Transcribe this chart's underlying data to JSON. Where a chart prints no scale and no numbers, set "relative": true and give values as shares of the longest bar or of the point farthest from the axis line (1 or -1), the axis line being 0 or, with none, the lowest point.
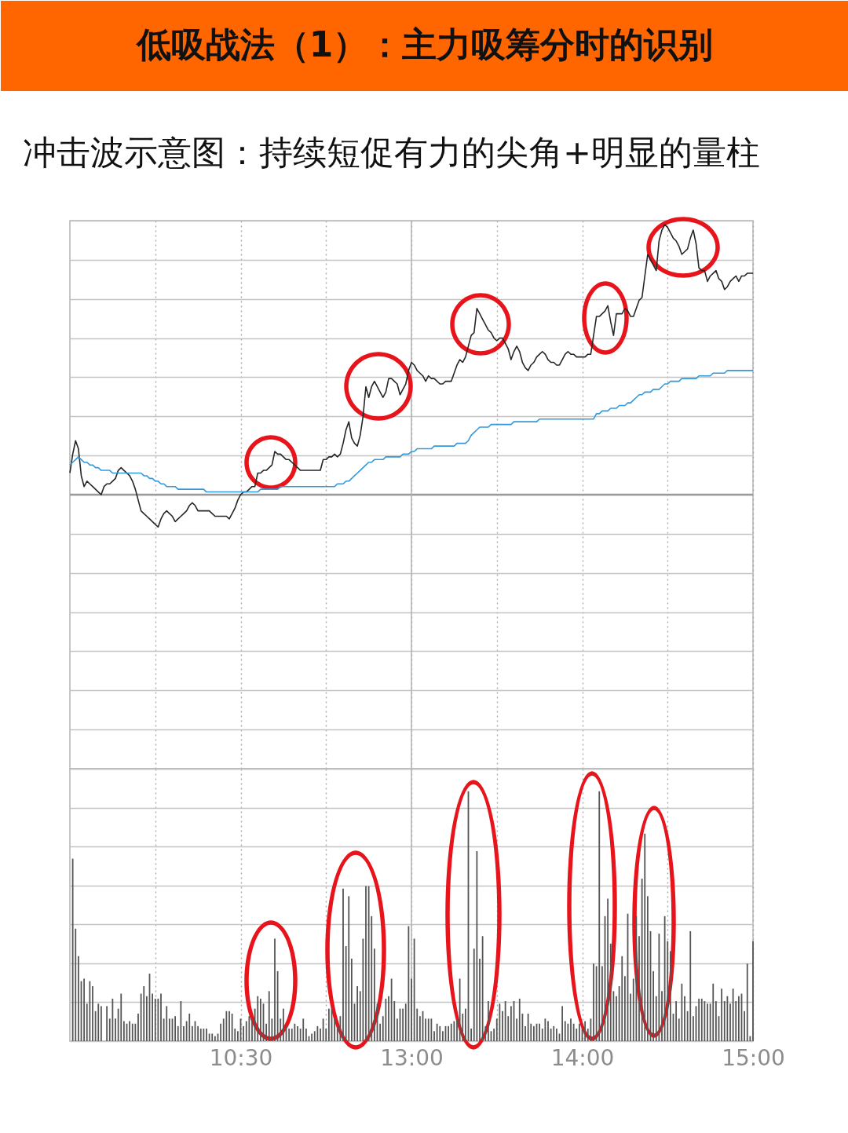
{
  "chart_data": [
    {
      "type": "line",
      "title": "低吸战法（1）：主力吸筹分时的识别",
      "subtitle": "冲击波示意图：持续短促有力的尖角+明显的量柱",
      "relative": true,
      "tick_labels": false,
      "grid": true,
      "categories": [
        null,
        null,
        null,
        null,
        null,
        null,
        null,
        null,
        null,
        null,
        null,
        null,
        null,
        null,
        null,
        null,
        null,
        null,
        null,
        null,
        null,
        null,
        null,
        null,
        null,
        null,
        null,
        null,
        null,
        null,
        null,
        null,
        null,
        null,
        null,
        null,
        null,
        null,
        null,
        null,
        null,
        null,
        null,
        null,
        null,
        null,
        null,
        null,
        null,
        null,
        null,
        null,
        null,
        null,
        null,
        null,
        null,
        null,
        null,
        null,
        "10:30",
        null,
        null,
        null,
        null,
        null,
        null,
        null,
        null,
        null,
        null,
        null,
        null,
        null,
        null,
        null,
        null,
        null,
        null,
        null,
        null,
        null,
        null,
        null,
        null,
        null,
        null,
        null,
        null,
        null,
        null,
        null,
        null,
        null,
        null,
        null,
        null,
        null,
        null,
        null,
        null,
        null,
        null,
        null,
        null,
        null,
        null,
        null,
        null,
        null,
        null,
        null,
        null,
        null,
        null,
        null,
        null,
        null,
        null,
        null,
        "13:00",
        null,
        null,
        null,
        null,
        null,
        null,
        null,
        null,
        null,
        null,
        null,
        null,
        null,
        null,
        null,
        null,
        null,
        null,
        null,
        null,
        null,
        null,
        null,
        null,
        null,
        null,
        null,
        null,
        null,
        null,
        null,
        null,
        null,
        null,
        null,
        null,
        null,
        null,
        null,
        null,
        null,
        null,
        null,
        null,
        null,
        null,
        null,
        null,
        null,
        null,
        null,
        null,
        null,
        null,
        null,
        null,
        null,
        null,
        null,
        "14:00",
        null,
        null,
        null,
        null,
        null,
        null,
        null,
        null,
        null,
        null,
        null,
        null,
        null,
        null,
        null,
        null,
        null,
        null,
        null,
        null,
        null,
        null,
        null,
        null,
        null,
        null,
        null,
        null,
        null,
        null,
        null,
        null,
        null,
        null,
        null,
        null,
        null,
        null,
        null,
        null,
        null,
        null,
        null,
        null,
        null,
        null,
        null,
        null,
        null,
        null,
        null,
        null,
        null,
        null,
        null,
        null,
        null,
        null,
        null,
        "15:00"
      ],
      "series": [
        {
          "color": "#262626",
          "values": [
            0.08,
            0.15,
            0.2,
            0.17,
            0.07,
            0.03,
            0.05,
            0.04,
            0.03,
            0.02,
            0.01,
            0.0,
            0.03,
            0.04,
            0.04,
            0.05,
            0.06,
            0.09,
            0.1,
            0.09,
            0.08,
            0.07,
            0.05,
            0.02,
            -0.02,
            -0.06,
            -0.07,
            -0.08,
            -0.09,
            -0.1,
            -0.11,
            -0.12,
            -0.09,
            -0.07,
            -0.06,
            -0.07,
            -0.08,
            -0.1,
            -0.09,
            -0.08,
            -0.07,
            -0.06,
            -0.04,
            -0.03,
            -0.04,
            -0.06,
            -0.06,
            -0.06,
            -0.06,
            -0.06,
            -0.07,
            -0.08,
            -0.08,
            -0.08,
            -0.08,
            -0.08,
            -0.09,
            -0.07,
            -0.05,
            -0.02,
            0.0,
            0.01,
            0.01,
            0.02,
            0.03,
            0.03,
            0.08,
            0.08,
            0.09,
            0.09,
            0.1,
            0.11,
            0.16,
            0.15,
            0.15,
            0.14,
            0.13,
            0.13,
            0.12,
            0.11,
            0.1,
            0.09,
            0.09,
            0.09,
            0.09,
            0.09,
            0.09,
            0.09,
            0.09,
            0.13,
            0.13,
            0.14,
            0.14,
            0.15,
            0.14,
            0.15,
            0.19,
            0.24,
            0.27,
            0.21,
            0.19,
            0.18,
            0.22,
            0.29,
            0.4,
            0.36,
            0.4,
            0.42,
            0.4,
            0.38,
            0.36,
            0.38,
            0.43,
            0.43,
            0.42,
            0.41,
            0.37,
            0.39,
            0.41,
            0.46,
            0.49,
            0.48,
            0.46,
            0.45,
            0.44,
            0.42,
            0.44,
            0.43,
            0.43,
            0.42,
            0.41,
            0.41,
            0.42,
            0.42,
            0.42,
            0.45,
            0.48,
            0.5,
            0.49,
            0.51,
            0.55,
            0.59,
            0.6,
            0.69,
            0.67,
            0.65,
            0.63,
            0.61,
            0.6,
            0.58,
            0.57,
            0.58,
            0.58,
            0.56,
            0.54,
            0.5,
            0.53,
            0.55,
            0.53,
            0.49,
            0.47,
            0.46,
            0.48,
            0.49,
            0.51,
            0.52,
            0.53,
            0.52,
            0.5,
            0.49,
            0.49,
            0.48,
            0.48,
            0.5,
            0.52,
            0.53,
            0.52,
            0.52,
            0.51,
            0.51,
            0.51,
            0.51,
            0.52,
            0.52,
            0.59,
            0.66,
            0.66,
            0.67,
            0.68,
            0.7,
            0.64,
            0.59,
            0.67,
            0.67,
            0.67,
            0.69,
            0.68,
            0.66,
            0.66,
            0.69,
            0.72,
            0.73,
            0.81,
            0.89,
            0.87,
            0.85,
            0.83,
            0.94,
            0.98,
            1.0,
            0.99,
            0.97,
            0.95,
            0.94,
            0.92,
            0.89,
            0.9,
            0.91,
            0.95,
            0.98,
            0.93,
            0.84,
            0.83,
            0.83,
            0.79,
            0.81,
            0.82,
            0.83,
            0.8,
            0.79,
            0.76,
            0.77,
            0.79,
            0.8,
            0.81,
            0.79,
            0.81,
            0.81,
            0.82,
            0.82,
            0.82
          ]
        },
        {
          "color": "#3399dd",
          "values": [
            0.11,
            0.12,
            0.13,
            0.14,
            0.13,
            0.12,
            0.12,
            0.11,
            0.11,
            0.1,
            0.1,
            0.09,
            0.09,
            0.09,
            0.09,
            0.08,
            0.08,
            0.08,
            0.08,
            0.08,
            0.08,
            0.08,
            0.08,
            0.08,
            0.08,
            0.08,
            0.07,
            0.07,
            0.06,
            0.06,
            0.05,
            0.05,
            0.04,
            0.04,
            0.03,
            0.03,
            0.03,
            0.03,
            0.02,
            0.02,
            0.02,
            0.02,
            0.02,
            0.02,
            0.02,
            0.02,
            0.02,
            0.02,
            0.01,
            0.01,
            0.01,
            0.01,
            0.01,
            0.01,
            0.01,
            0.01,
            0.01,
            0.01,
            0.01,
            0.01,
            0.01,
            0.01,
            0.01,
            0.01,
            0.01,
            0.01,
            0.01,
            0.02,
            0.02,
            0.02,
            0.02,
            0.02,
            0.02,
            0.02,
            0.03,
            0.03,
            0.03,
            0.03,
            0.03,
            0.03,
            0.03,
            0.03,
            0.03,
            0.03,
            0.03,
            0.03,
            0.03,
            0.03,
            0.03,
            0.03,
            0.03,
            0.03,
            0.03,
            0.03,
            0.04,
            0.04,
            0.04,
            0.05,
            0.05,
            0.06,
            0.07,
            0.08,
            0.09,
            0.1,
            0.11,
            0.12,
            0.12,
            0.13,
            0.13,
            0.13,
            0.13,
            0.14,
            0.14,
            0.14,
            0.14,
            0.14,
            0.14,
            0.15,
            0.15,
            0.15,
            0.16,
            0.16,
            0.17,
            0.17,
            0.17,
            0.17,
            0.17,
            0.17,
            0.18,
            0.18,
            0.18,
            0.18,
            0.18,
            0.18,
            0.18,
            0.18,
            0.19,
            0.19,
            0.19,
            0.19,
            0.2,
            0.22,
            0.23,
            0.24,
            0.25,
            0.25,
            0.25,
            0.25,
            0.26,
            0.26,
            0.26,
            0.26,
            0.26,
            0.26,
            0.26,
            0.26,
            0.27,
            0.27,
            0.27,
            0.27,
            0.27,
            0.27,
            0.27,
            0.27,
            0.27,
            0.28,
            0.28,
            0.28,
            0.28,
            0.28,
            0.28,
            0.28,
            0.28,
            0.28,
            0.28,
            0.28,
            0.28,
            0.28,
            0.28,
            0.28,
            0.28,
            0.28,
            0.28,
            0.28,
            0.28,
            0.3,
            0.3,
            0.31,
            0.31,
            0.31,
            0.32,
            0.32,
            0.32,
            0.33,
            0.33,
            0.33,
            0.34,
            0.34,
            0.35,
            0.36,
            0.37,
            0.37,
            0.38,
            0.38,
            0.38,
            0.39,
            0.39,
            0.39,
            0.4,
            0.41,
            0.41,
            0.42,
            0.42,
            0.42,
            0.42,
            0.43,
            0.43,
            0.43,
            0.43,
            0.43,
            0.43,
            0.44,
            0.44,
            0.44,
            0.44,
            0.44,
            0.45,
            0.45,
            0.45,
            0.45,
            0.45,
            0.46,
            0.46,
            0.46,
            0.46,
            0.46,
            0.46,
            0.46,
            0.46,
            0.46,
            0.46
          ]
        }
      ],
      "ref_lines": [
        {
          "axis": "y",
          "value": 0,
          "color": "#9a9a9a"
        },
        {
          "axis": "x",
          "value": "13:00",
          "color": "#b4b4b4"
        }
      ]
    },
    {
      "type": "bar",
      "relative": true,
      "tick_labels": "x",
      "grid": true,
      "color": "#555555",
      "categories": [
        null,
        null,
        null,
        null,
        null,
        null,
        null,
        null,
        null,
        null,
        null,
        null,
        null,
        null,
        null,
        null,
        null,
        null,
        null,
        null,
        null,
        null,
        null,
        null,
        null,
        null,
        null,
        null,
        null,
        null,
        null,
        null,
        null,
        null,
        null,
        null,
        null,
        null,
        null,
        null,
        null,
        null,
        null,
        null,
        null,
        null,
        null,
        null,
        null,
        null,
        null,
        null,
        null,
        null,
        null,
        null,
        null,
        null,
        null,
        null,
        "10:30",
        null,
        null,
        null,
        null,
        null,
        null,
        null,
        null,
        null,
        null,
        null,
        null,
        null,
        null,
        null,
        null,
        null,
        null,
        null,
        null,
        null,
        null,
        null,
        null,
        null,
        null,
        null,
        null,
        null,
        null,
        null,
        null,
        null,
        null,
        null,
        null,
        null,
        null,
        null,
        null,
        null,
        null,
        null,
        null,
        null,
        null,
        null,
        null,
        null,
        null,
        null,
        null,
        null,
        null,
        null,
        null,
        null,
        null,
        null,
        "13:00",
        null,
        null,
        null,
        null,
        null,
        null,
        null,
        null,
        null,
        null,
        null,
        null,
        null,
        null,
        null,
        null,
        null,
        null,
        null,
        null,
        null,
        null,
        null,
        null,
        null,
        null,
        null,
        null,
        null,
        null,
        null,
        null,
        null,
        null,
        null,
        null,
        null,
        null,
        null,
        null,
        null,
        null,
        null,
        null,
        null,
        null,
        null,
        null,
        null,
        null,
        null,
        null,
        null,
        null,
        null,
        null,
        null,
        null,
        null,
        "14:00",
        null,
        null,
        null,
        null,
        null,
        null,
        null,
        null,
        null,
        null,
        null,
        null,
        null,
        null,
        null,
        null,
        null,
        null,
        null,
        null,
        null,
        null,
        null,
        null,
        null,
        null,
        null,
        null,
        null,
        null,
        null,
        null,
        null,
        null,
        null,
        null,
        null,
        null,
        null,
        null,
        null,
        null,
        null,
        null,
        null,
        null,
        null,
        null,
        null,
        null,
        null,
        null,
        null,
        null,
        null,
        null,
        null,
        null,
        null,
        "15:00"
      ],
      "values": [
        null,
        0.73,
        0.45,
        0.34,
        0.24,
        0.25,
        0.15,
        0.24,
        0.22,
        0.12,
        0.15,
        0.14,
        null,
        0.14,
        0.09,
        0.17,
        0.09,
        0.13,
        0.19,
        0.08,
        0.07,
        0.08,
        0.07,
        0.07,
        0.11,
        0.19,
        0.22,
        0.18,
        0.27,
        0.19,
        0.17,
        0.17,
        0.19,
        0.09,
        0.14,
        0.09,
        0.09,
        0.1,
        0.06,
        0.16,
        0.06,
        0.08,
        0.11,
        0.06,
        0.08,
        0.06,
        0.05,
        0.05,
        0.05,
        0.03,
        0.03,
        0.02,
        0.03,
        0.07,
        0.09,
        0.12,
        0.12,
        0.11,
        0.05,
        0.04,
        0.09,
        0.06,
        0.08,
        0.1,
        0.09,
        0.13,
        0.18,
        0.17,
        0.15,
        0.07,
        0.2,
        0.09,
        0.41,
        0.28,
        0.09,
        0.13,
        0.06,
        0.05,
        0.05,
        0.07,
        0.06,
        0.05,
        0.09,
        0.05,
        0.02,
        0.03,
        0.04,
        0.06,
        0.05,
        0.09,
        0.05,
        0.13,
        0.13,
        0.09,
        0.06,
        0.1,
        0.61,
        0.38,
        0.58,
        0.33,
        0.15,
        0.22,
        0.2,
        0.41,
        0.62,
        0.62,
        0.5,
        0.37,
        0.15,
        0.07,
        0.1,
        0.17,
        0.18,
        0.25,
        0.16,
        0.09,
        0.13,
        0.13,
        0.15,
        0.46,
        0.25,
        0.41,
        0.13,
        0.1,
        0.12,
        0.09,
        0.09,
        0.09,
        0.04,
        0.07,
        0.06,
        0.04,
        0.06,
        0.06,
        0.07,
        0.08,
        0.09,
        0.25,
        0.11,
        0.13,
        1.0,
        0.05,
        0.37,
        0.76,
        0.33,
        0.42,
        0.06,
        0.16,
        0.04,
        0.05,
        0.09,
        0.15,
        0.12,
        0.16,
        0.1,
        0.14,
        0.16,
        0.09,
        0.17,
        0.11,
        0.06,
        0.11,
        0.07,
        0.06,
        0.07,
        0.07,
        0.05,
        0.09,
        0.08,
        0.05,
        0.06,
        0.05,
        0.03,
        0.14,
        0.08,
        0.07,
        0.09,
        0.07,
        0.05,
        0.07,
        0.05,
        0.08,
        0.05,
        0.09,
        0.31,
        0.3,
        1.0,
        0.3,
        0.5,
        0.57,
        0.39,
        0.2,
        0.18,
        0.22,
        0.34,
        0.26,
        0.51,
        0.19,
        0.25,
        0.5,
        0.42,
        0.65,
        0.83,
        0.58,
        0.44,
        0.28,
        0.18,
        0.43,
        0.2,
        0.5,
        0.4,
        0.36,
        0.11,
        0.16,
        0.09,
        0.23,
        0.18,
        0.12,
        0.44,
        0.1,
        0.14,
        0.17,
        0.17,
        0.16,
        0.15,
        0.15,
        0.23,
        0.16,
        0.1,
        0.21,
        0.16,
        0.18,
        0.15,
        0.21,
        0.16,
        0.18,
        0.19,
        0.12,
        0.31,
        0.02,
        0.4
      ],
      "ref_lines": [
        {
          "axis": "x",
          "value": "13:00",
          "color": "#b4b4b4"
        }
      ]
    }
  ]
}
